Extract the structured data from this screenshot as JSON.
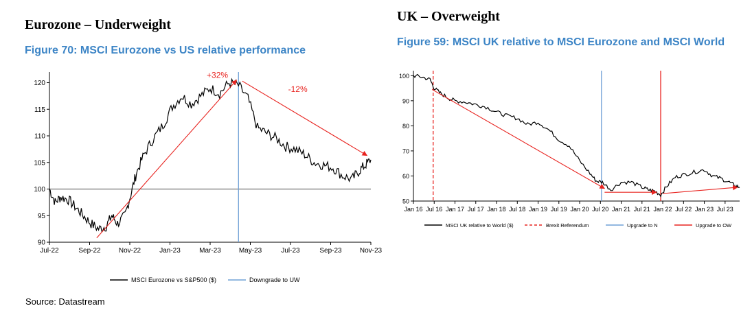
{
  "left": {
    "heading": "Eurozone – Underweight",
    "figure_title": "Figure 70: MSCI Eurozone vs US relative performance",
    "source": "Source: Datastream"
  },
  "right": {
    "heading": "UK – Overweight",
    "figure_title": "Figure 59: MSCI UK relative to MSCI Eurozone and MSCI World"
  },
  "colors": {
    "series": "#000000",
    "blue_marker": "#6fa0d6",
    "red": "#e8231f",
    "title_blue": "#3d85c6"
  },
  "chart_data": [
    {
      "type": "line",
      "title": "Figure 70: MSCI Eurozone vs US relative performance",
      "xlabel": "",
      "ylabel": "",
      "x_ticks": [
        "Jul-22",
        "Sep-22",
        "Nov-22",
        "Jan-23",
        "Mar-23",
        "May-23",
        "Jul-23",
        "Sep-23",
        "Nov-23"
      ],
      "x_range": [
        0,
        17
      ],
      "ylim": [
        90,
        122
      ],
      "y_ticks": [
        90,
        95,
        100,
        105,
        110,
        115,
        120
      ],
      "baseline": 100,
      "series": [
        {
          "name": "MSCI Eurozone vs S&P500 ($)",
          "x": [
            0,
            0.3,
            0.6,
            1.0,
            1.4,
            1.8,
            2.2,
            2.6,
            3.0,
            3.3,
            3.6,
            4.0,
            4.3,
            4.6,
            5.0,
            5.5,
            6.0,
            6.5,
            7.0,
            7.5,
            8.0,
            8.5,
            9.0,
            9.5,
            10.0,
            10.5,
            11.0,
            11.5,
            12.0,
            12.5,
            13.0,
            13.5,
            14.0,
            14.5,
            15.0,
            15.5,
            16.0,
            16.4,
            16.7,
            17.0
          ],
          "values": [
            100,
            97.5,
            98.5,
            98.0,
            96.5,
            95.0,
            93.5,
            92.5,
            93.0,
            95.0,
            93.5,
            95.0,
            99.0,
            103.0,
            106.5,
            109.5,
            112.0,
            115.5,
            117.5,
            116.0,
            117.5,
            119.0,
            118.0,
            120.0,
            119.5,
            117.0,
            111.5,
            110.5,
            109.5,
            108.0,
            107.5,
            106.5,
            105.0,
            104.5,
            104.0,
            102.5,
            101.8,
            103.5,
            104.5,
            105.5
          ]
        }
      ],
      "markers": [
        {
          "name": "Downgrade to UW",
          "x": 10,
          "style": "solid",
          "color": "#6fa0d6"
        }
      ],
      "arrows": [
        {
          "from": [
            2.5,
            90.8
          ],
          "to": [
            9.9,
            120.5
          ],
          "label": "+32%"
        },
        {
          "from": [
            10.2,
            120.3
          ],
          "to": [
            16.8,
            106.3
          ],
          "label": "-12%"
        }
      ],
      "legend": [
        "MSCI Eurozone vs S&P500 ($)",
        "Downgrade to UW"
      ],
      "legend_position": "bottom"
    },
    {
      "type": "line",
      "title": "Figure 59: MSCI UK relative to MSCI Eurozone and MSCI World",
      "xlabel": "",
      "ylabel": "",
      "x_ticks": [
        "Jan 16",
        "Jul 16",
        "Jan 17",
        "Jul 17",
        "Jan 18",
        "Jul 18",
        "Jan 19",
        "Jul 19",
        "Jan 20",
        "Jul 20",
        "Jan 21",
        "Jul 21",
        "Jan 22",
        "Jul 22",
        "Jan 23",
        "Jul 23"
      ],
      "x_range": [
        0,
        15.7
      ],
      "ylim": [
        50,
        102
      ],
      "y_ticks": [
        50,
        60,
        70,
        80,
        90,
        100
      ],
      "series": [
        {
          "name": "MSCI UK relative to World ($)",
          "x": [
            0,
            0.4,
            0.8,
            1.0,
            1.3,
            1.7,
            2.0,
            2.5,
            3.0,
            3.5,
            4.0,
            4.5,
            5.0,
            5.5,
            6.0,
            6.5,
            7.0,
            7.5,
            8.0,
            8.5,
            8.8,
            9.1,
            9.5,
            10.0,
            10.5,
            11.0,
            11.3,
            11.6,
            11.9,
            12.2,
            12.6,
            13.0,
            13.5,
            14.0,
            14.4,
            14.8,
            15.2,
            15.5,
            15.7
          ],
          "values": [
            100,
            99.5,
            98.5,
            95.0,
            93.0,
            91.0,
            90.0,
            89.5,
            88.5,
            87.5,
            85.5,
            84.0,
            83.0,
            80.5,
            81.5,
            78.5,
            74.5,
            72.0,
            66.0,
            61.0,
            58.0,
            57.5,
            54.5,
            57.5,
            57.5,
            55.5,
            54.5,
            54.0,
            52.5,
            56.0,
            59.5,
            60.5,
            61.5,
            62.5,
            60.0,
            59.0,
            57.5,
            56.0,
            55.5
          ]
        }
      ],
      "markers": [
        {
          "name": "Brexit Referendum",
          "x": 0.95,
          "style": "dashed",
          "color": "#e8231f"
        },
        {
          "name": "Upgrade to N",
          "x": 9.05,
          "style": "solid",
          "color": "#6fa0d6"
        },
        {
          "name": "Upgrade to OW",
          "x": 11.9,
          "style": "solid",
          "color": "#e8231f"
        }
      ],
      "arrows": [
        {
          "from": [
            0.9,
            94.5
          ],
          "to": [
            9.2,
            55.0
          ]
        },
        {
          "from": [
            9.2,
            53.5
          ],
          "to": [
            11.7,
            53.5
          ]
        },
        {
          "from": [
            12.0,
            53.0
          ],
          "to": [
            15.6,
            55.5
          ]
        }
      ],
      "legend": [
        "MSCI UK relative to World ($)",
        "Brexit Referendum",
        "Upgrade to N",
        "Upgrade to OW"
      ],
      "legend_position": "bottom"
    }
  ]
}
